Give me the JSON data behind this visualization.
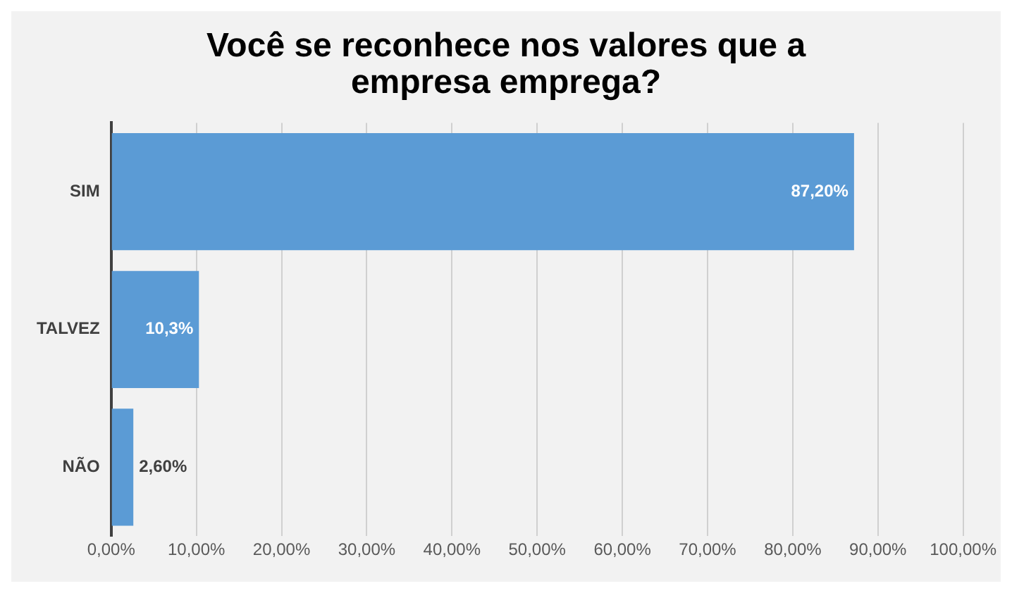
{
  "chart_data": {
    "type": "bar",
    "orientation": "horizontal",
    "title": "Você se reconhece nos valores que a empresa emprega?",
    "categories": [
      "SIM",
      "TALVEZ",
      "NÃO"
    ],
    "values": [
      87.2,
      10.3,
      2.6
    ],
    "value_labels": [
      "87,20%",
      "10,3%",
      "2,60%"
    ],
    "color": "#5b9bd5",
    "xlim": [
      0,
      100
    ],
    "xticks": [
      {
        "value": 0,
        "label": "0,00%"
      },
      {
        "value": 10,
        "label": "10,00%"
      },
      {
        "value": 20,
        "label": "20,00%"
      },
      {
        "value": 30,
        "label": "30,00%"
      },
      {
        "value": 40,
        "label": "40,00%"
      },
      {
        "value": 50,
        "label": "50,00%"
      },
      {
        "value": 60,
        "label": "60,00%"
      },
      {
        "value": 70,
        "label": "70,00%"
      },
      {
        "value": 80,
        "label": "80,00%"
      },
      {
        "value": 90,
        "label": "90,00%"
      },
      {
        "value": 100,
        "label": "100,00%"
      }
    ],
    "grid": "x"
  }
}
